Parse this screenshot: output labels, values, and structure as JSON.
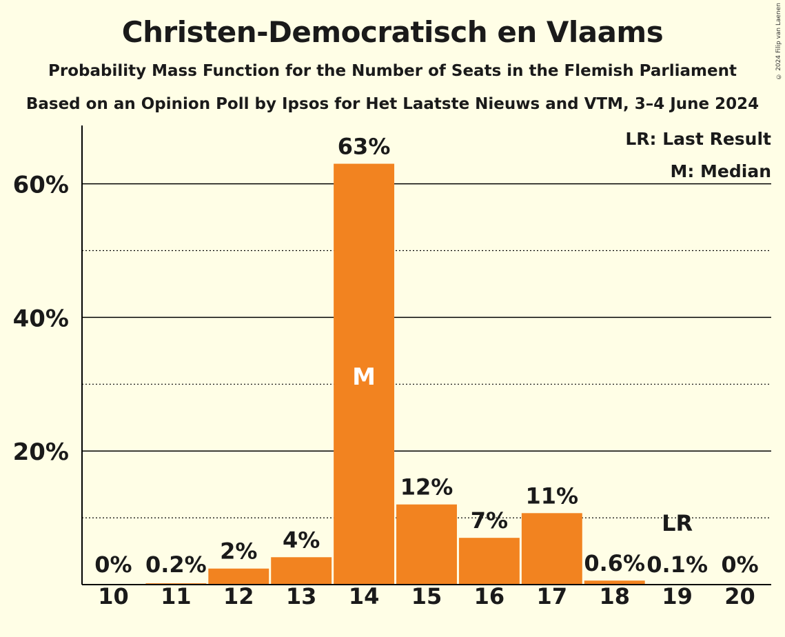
{
  "title": "Christen-Democratisch en Vlaams",
  "subtitle1": "Probability Mass Function for the Number of Seats in the Flemish Parliament",
  "subtitle2": "Based on an Opinion Poll by Ipsos for Het Laatste Nieuws and VTM, 3–4 June 2024",
  "copyright": "© 2024 Filip van Laenen",
  "colors": {
    "bar": "#F28320",
    "background": "#FFFEE6",
    "text": "#1a1a1a"
  },
  "legend": {
    "lr": "LR: Last Result",
    "m": "M: Median"
  },
  "chart_data": {
    "type": "bar",
    "categories": [
      "10",
      "11",
      "12",
      "13",
      "14",
      "15",
      "16",
      "17",
      "18",
      "19",
      "20"
    ],
    "values": [
      0,
      0.2,
      2.4,
      4.1,
      63,
      12,
      7,
      10.7,
      0.6,
      0.1,
      0
    ],
    "value_labels": [
      "0%",
      "0.2%",
      "2%",
      "4%",
      "63%",
      "12%",
      "7%",
      "11%",
      "0.6%",
      "0.1%",
      "0%"
    ],
    "ylim": [
      0,
      68
    ],
    "yticks": [
      {
        "value": 20,
        "label": "20%"
      },
      {
        "value": 40,
        "label": "40%"
      },
      {
        "value": 60,
        "label": "60%"
      }
    ],
    "minor_gridlines": [
      10,
      30,
      50
    ],
    "median": {
      "category": "14",
      "label": "M"
    },
    "last_result": {
      "category": "19",
      "label": "LR"
    },
    "legend_position": "top-right",
    "grid": true
  }
}
